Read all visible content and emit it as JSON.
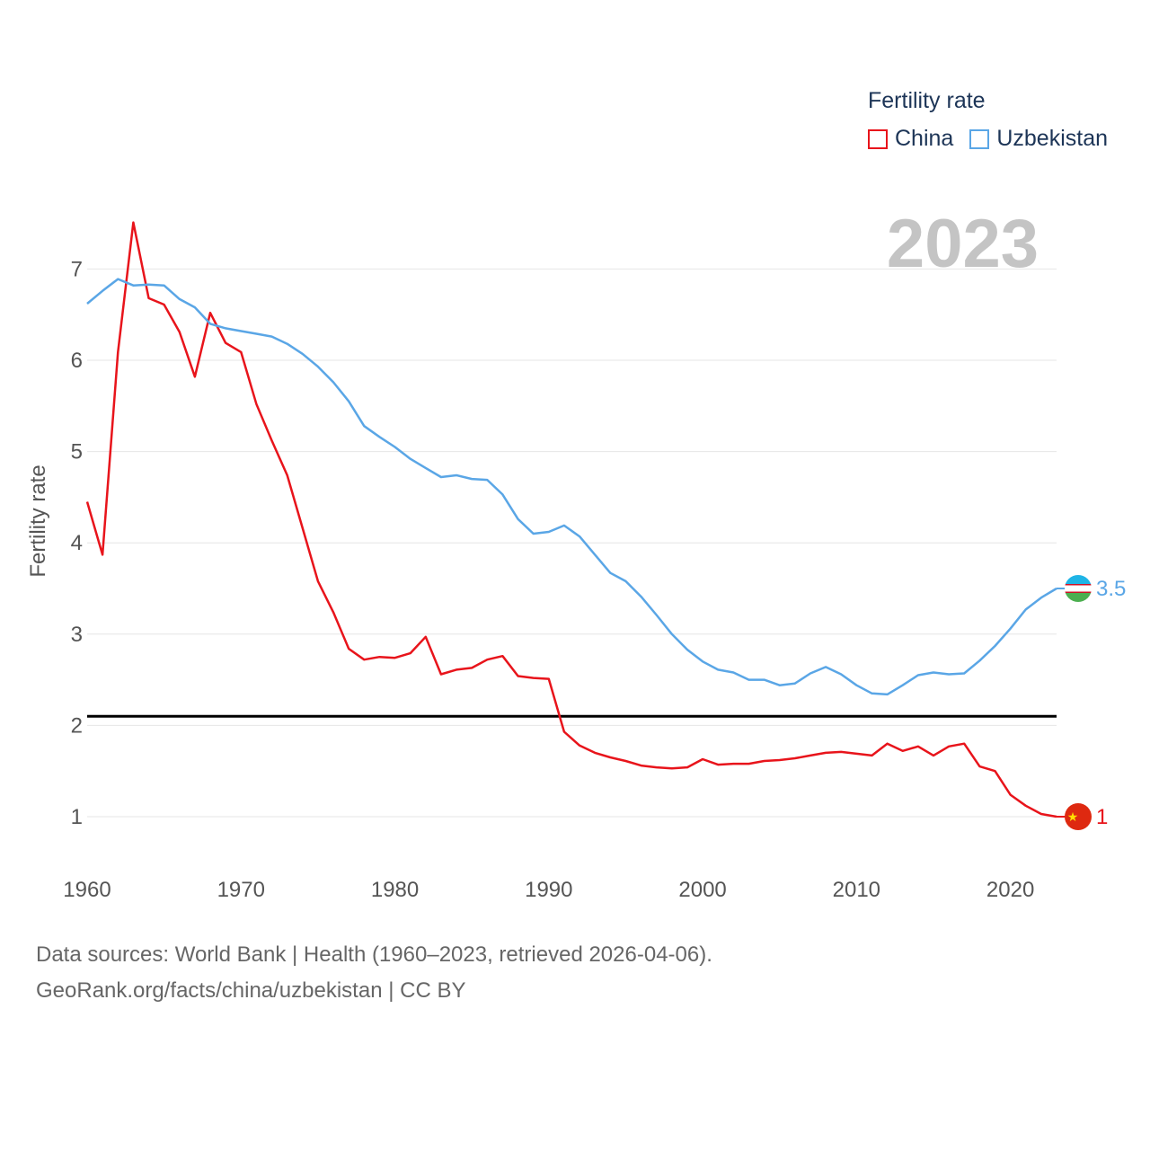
{
  "legend": {
    "title": "Fertility rate",
    "items": [
      {
        "label": "China",
        "color": "#e8141b"
      },
      {
        "label": "Uzbekistan",
        "color": "#5aa6e6"
      }
    ]
  },
  "year_label": "2023",
  "source": {
    "line1": "Data sources: World Bank | Health (1960–2023, retrieved 2026-04-06).",
    "line2": "GeoRank.org/facts/china/uzbekistan | CC BY"
  },
  "chart_data": {
    "type": "line",
    "title": "Fertility rate",
    "xlabel": "",
    "ylabel": "Fertility rate",
    "xlim": [
      1960,
      2023
    ],
    "ylim": [
      0.5,
      7.5
    ],
    "x_ticks": [
      "1960",
      "1970",
      "1980",
      "1990",
      "2000",
      "2010",
      "2020"
    ],
    "y_ticks": [
      "1",
      "2",
      "3",
      "4",
      "5",
      "6",
      "7"
    ],
    "reference_line": {
      "y": 2.1,
      "label": "",
      "color": "#000000"
    },
    "x": [
      1960,
      1961,
      1962,
      1963,
      1964,
      1965,
      1966,
      1967,
      1968,
      1969,
      1970,
      1971,
      1972,
      1973,
      1974,
      1975,
      1976,
      1977,
      1978,
      1979,
      1980,
      1981,
      1982,
      1983,
      1984,
      1985,
      1986,
      1987,
      1988,
      1989,
      1990,
      1991,
      1992,
      1993,
      1994,
      1995,
      1996,
      1997,
      1998,
      1999,
      2000,
      2001,
      2002,
      2003,
      2004,
      2005,
      2006,
      2007,
      2008,
      2009,
      2010,
      2011,
      2012,
      2013,
      2014,
      2015,
      2016,
      2017,
      2018,
      2019,
      2020,
      2021,
      2022,
      2023
    ],
    "series": [
      {
        "name": "China",
        "color": "#e8141b",
        "end_label": "1",
        "values": [
          4.45,
          3.87,
          6.09,
          7.51,
          6.68,
          6.61,
          6.31,
          5.82,
          6.52,
          6.19,
          6.09,
          5.52,
          5.12,
          4.74,
          4.16,
          3.58,
          3.24,
          2.84,
          2.72,
          2.75,
          2.74,
          2.79,
          2.97,
          2.56,
          2.61,
          2.63,
          2.72,
          2.76,
          2.54,
          2.52,
          2.51,
          1.93,
          1.78,
          1.7,
          1.65,
          1.61,
          1.56,
          1.54,
          1.53,
          1.54,
          1.63,
          1.57,
          1.58,
          1.58,
          1.61,
          1.62,
          1.64,
          1.67,
          1.7,
          1.71,
          1.69,
          1.67,
          1.8,
          1.72,
          1.77,
          1.67,
          1.77,
          1.8,
          1.55,
          1.5,
          1.24,
          1.12,
          1.03,
          1.0
        ]
      },
      {
        "name": "Uzbekistan",
        "color": "#5aa6e6",
        "end_label": "3.5",
        "values": [
          6.62,
          6.76,
          6.89,
          6.82,
          6.83,
          6.82,
          6.67,
          6.58,
          6.4,
          6.35,
          6.32,
          6.29,
          6.26,
          6.18,
          6.07,
          5.93,
          5.76,
          5.55,
          5.28,
          5.16,
          5.05,
          4.92,
          4.82,
          4.72,
          4.74,
          4.7,
          4.69,
          4.53,
          4.26,
          4.1,
          4.12,
          4.19,
          4.07,
          3.87,
          3.67,
          3.58,
          3.41,
          3.21,
          3.0,
          2.83,
          2.7,
          2.61,
          2.58,
          2.5,
          2.5,
          2.44,
          2.46,
          2.57,
          2.64,
          2.56,
          2.44,
          2.35,
          2.34,
          2.44,
          2.55,
          2.58,
          2.56,
          2.57,
          2.71,
          2.87,
          3.06,
          3.27,
          3.4,
          3.5
        ]
      }
    ]
  }
}
